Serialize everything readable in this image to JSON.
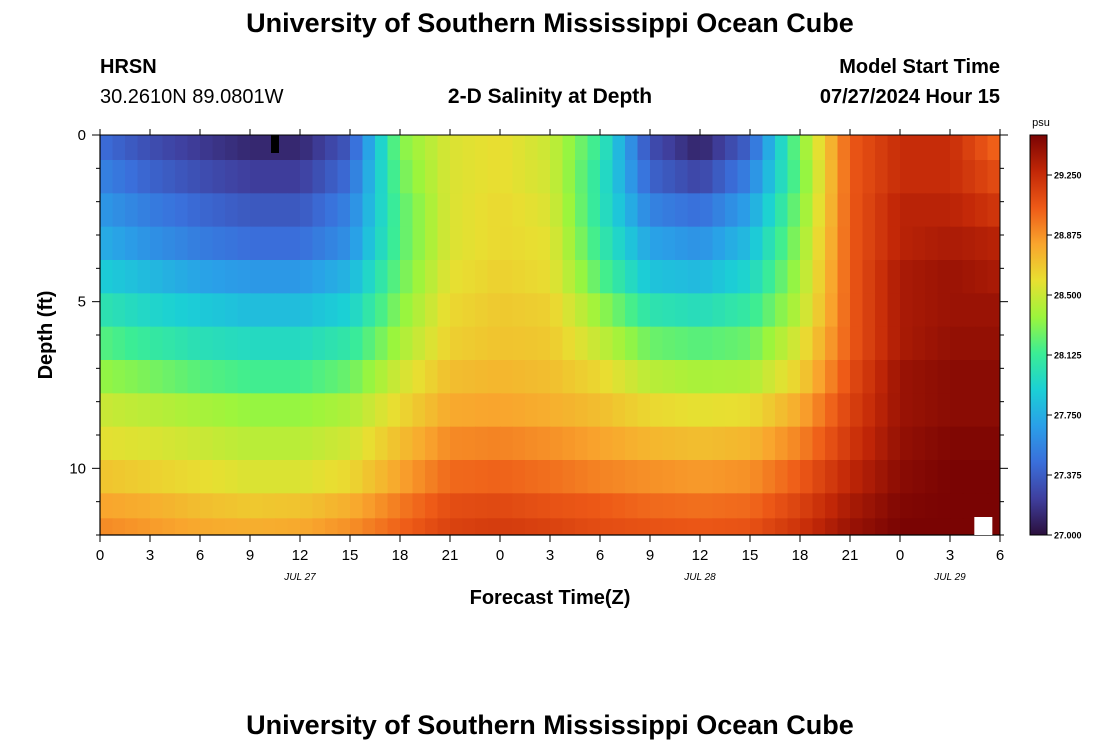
{
  "page": {
    "title_top": "University of Southern Mississippi Ocean Cube",
    "title_bottom": "University of Southern Mississippi Ocean Cube",
    "station": "HRSN",
    "coordinates": "30.2610N  89.0801W",
    "plot_title": "2-D Salinity at Depth",
    "model_start_label": "Model Start Time",
    "model_start_value": "07/27/2024 Hour 15"
  },
  "chart_data": {
    "type": "heatmap",
    "title": "2-D Salinity at Depth",
    "xlabel": "Forecast Time(Z)",
    "ylabel": "Depth (ft)",
    "xlim": [
      0,
      54
    ],
    "ylim": [
      0,
      12
    ],
    "x_ticks": [
      {
        "hours": 0,
        "label": "0"
      },
      {
        "hours": 3,
        "label": "3"
      },
      {
        "hours": 6,
        "label": "6"
      },
      {
        "hours": 9,
        "label": "9"
      },
      {
        "hours": 12,
        "label": "12"
      },
      {
        "hours": 15,
        "label": "15"
      },
      {
        "hours": 18,
        "label": "18"
      },
      {
        "hours": 21,
        "label": "21"
      },
      {
        "hours": 24,
        "label": "0"
      },
      {
        "hours": 27,
        "label": "3"
      },
      {
        "hours": 30,
        "label": "6"
      },
      {
        "hours": 33,
        "label": "9"
      },
      {
        "hours": 36,
        "label": "12"
      },
      {
        "hours": 39,
        "label": "15"
      },
      {
        "hours": 42,
        "label": "18"
      },
      {
        "hours": 45,
        "label": "21"
      },
      {
        "hours": 48,
        "label": "0"
      },
      {
        "hours": 51,
        "label": "3"
      },
      {
        "hours": 54,
        "label": "6"
      }
    ],
    "date_labels": [
      {
        "hours": 12,
        "label": "JUL 27"
      },
      {
        "hours": 36,
        "label": "JUL 28"
      },
      {
        "hours": 51,
        "label": "JUL 29"
      }
    ],
    "y_ticks": [
      {
        "depth": 0,
        "label": "0"
      },
      {
        "depth": 5,
        "label": "5"
      },
      {
        "depth": 10,
        "label": "10"
      }
    ],
    "colorbar": {
      "units": "psu",
      "min": 27.0,
      "max": 29.5,
      "tick_labels": [
        "27.000",
        "27.375",
        "27.750",
        "28.125",
        "28.500",
        "28.875",
        "29.250"
      ],
      "stops": [
        "#2b0f3c",
        "#3f3f9e",
        "#3a6fdb",
        "#2a9fe8",
        "#1bd0d5",
        "#3bed95",
        "#9cf53c",
        "#e8df31",
        "#f9a52d",
        "#ee5a17",
        "#c22707",
        "#7a0403"
      ]
    },
    "depths": [
      0.25,
      1.25,
      2.25,
      3.25,
      4.25,
      5.25,
      6.25,
      7.25,
      8.25,
      9.25,
      10.25,
      11.25,
      11.75
    ],
    "hours": [
      0,
      3,
      6,
      9,
      12,
      15,
      18,
      21,
      24,
      27,
      30,
      33,
      36,
      39,
      42,
      45,
      48,
      51,
      54
    ],
    "salinity_psu": [
      [
        27.45,
        27.3,
        27.2,
        27.12,
        27.12,
        27.35,
        28.3,
        28.55,
        28.6,
        28.5,
        28.1,
        27.3,
        27.1,
        27.4,
        28.3,
        29.05,
        29.25,
        29.25,
        29.0
      ],
      [
        27.55,
        27.4,
        27.3,
        27.22,
        27.22,
        27.45,
        28.25,
        28.55,
        28.6,
        28.52,
        28.05,
        27.4,
        27.25,
        27.55,
        28.25,
        29.05,
        29.25,
        29.25,
        29.1
      ],
      [
        27.65,
        27.52,
        27.42,
        27.35,
        27.35,
        27.55,
        28.2,
        28.55,
        28.62,
        28.55,
        28.05,
        27.55,
        27.45,
        27.7,
        28.3,
        29.05,
        29.3,
        29.3,
        29.2
      ],
      [
        27.75,
        27.62,
        27.52,
        27.45,
        27.45,
        27.62,
        28.2,
        28.55,
        28.62,
        28.58,
        28.1,
        27.7,
        27.62,
        27.82,
        28.35,
        29.05,
        29.3,
        29.35,
        29.3
      ],
      [
        27.9,
        27.8,
        27.7,
        27.65,
        27.65,
        27.78,
        28.25,
        28.58,
        28.65,
        28.6,
        28.2,
        27.85,
        27.8,
        27.95,
        28.4,
        29.05,
        29.35,
        29.4,
        29.35
      ],
      [
        28.05,
        27.95,
        27.88,
        27.82,
        27.82,
        27.92,
        28.32,
        28.62,
        28.68,
        28.65,
        28.35,
        28.05,
        28.0,
        28.1,
        28.45,
        29.05,
        29.35,
        29.4,
        29.4
      ],
      [
        28.2,
        28.1,
        28.02,
        27.98,
        27.98,
        28.08,
        28.4,
        28.65,
        28.7,
        28.68,
        28.48,
        28.25,
        28.2,
        28.25,
        28.55,
        29.05,
        29.35,
        29.42,
        29.42
      ],
      [
        28.35,
        28.28,
        28.2,
        28.15,
        28.15,
        28.25,
        28.52,
        28.72,
        28.75,
        28.72,
        28.62,
        28.45,
        28.4,
        28.42,
        28.65,
        29.1,
        29.4,
        29.45,
        29.45
      ],
      [
        28.5,
        28.45,
        28.4,
        28.35,
        28.35,
        28.42,
        28.62,
        28.8,
        28.82,
        28.78,
        28.72,
        28.62,
        28.58,
        28.6,
        28.8,
        29.15,
        29.4,
        29.45,
        29.45
      ],
      [
        28.58,
        28.55,
        28.5,
        28.45,
        28.45,
        28.52,
        28.72,
        28.9,
        28.92,
        28.88,
        28.82,
        28.75,
        28.72,
        28.75,
        28.92,
        29.2,
        29.42,
        29.48,
        29.48
      ],
      [
        28.7,
        28.65,
        28.6,
        28.55,
        28.55,
        28.62,
        28.82,
        29.0,
        29.02,
        28.98,
        28.92,
        28.88,
        28.85,
        28.88,
        29.05,
        29.28,
        29.45,
        29.5,
        29.5
      ],
      [
        28.82,
        28.78,
        28.72,
        28.68,
        28.7,
        28.78,
        28.95,
        29.1,
        29.12,
        29.08,
        29.05,
        29.0,
        28.98,
        29.0,
        29.15,
        29.35,
        29.48,
        29.5,
        29.5
      ],
      [
        28.9,
        28.85,
        28.8,
        28.78,
        28.8,
        28.88,
        29.02,
        29.15,
        29.18,
        29.15,
        29.1,
        29.08,
        29.06,
        29.08,
        29.22,
        29.4,
        29.5,
        29.5,
        29.5
      ]
    ],
    "missing_cells": [
      {
        "hours": 10.5,
        "depth": 0.3
      },
      {
        "hours": 53.0,
        "depth": 11.75
      }
    ]
  }
}
